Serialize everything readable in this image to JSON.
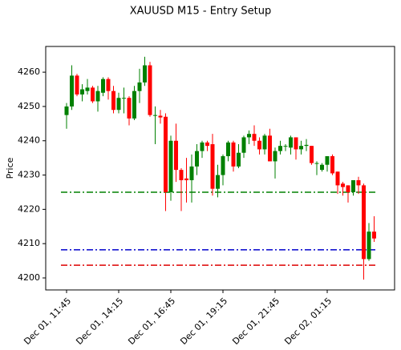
{
  "chart_data": {
    "type": "candlestick",
    "title": "XAUUSD M15 - Entry Setup",
    "ylabel": "Price",
    "categories": [
      "Dec 01, 11:45",
      null,
      null,
      null,
      null,
      null,
      null,
      null,
      null,
      null,
      "Dec 01, 14:15",
      null,
      null,
      null,
      null,
      null,
      null,
      null,
      null,
      null,
      "Dec 01, 16:45",
      null,
      null,
      null,
      null,
      null,
      null,
      null,
      null,
      null,
      "Dec 01, 19:15",
      null,
      null,
      null,
      null,
      null,
      null,
      null,
      null,
      null,
      "Dec 01, 21:45",
      null,
      null,
      null,
      null,
      null,
      null,
      null,
      null,
      null,
      "Dec 02, 01:15",
      null,
      null,
      null,
      null,
      null,
      null,
      null,
      null,
      null
    ],
    "open": [
      4247.5,
      4250,
      4259,
      4253.5,
      4254.5,
      4255.5,
      4251.5,
      4254,
      4258,
      4254.5,
      4249,
      4252.5,
      4252.5,
      4246.5,
      4254.5,
      4257,
      4262,
      4247.5,
      4247.3,
      4247,
      4225,
      4240,
      4231.5,
      4229,
      4228.5,
      4232.5,
      4237,
      4239.5,
      4239,
      4226,
      4230,
      4235.5,
      4239.5,
      4232.5,
      4236.5,
      4241,
      4242,
      4240,
      4237.5,
      4241.5,
      4234,
      4237,
      4238.5,
      4238,
      4241,
      4237.5,
      4238.5,
      4238.5,
      4233.5,
      4231.5,
      4233,
      4235.5,
      4231,
      4227.5,
      4227,
      4225,
      4228.5,
      4227,
      4205.5,
      4213.5
    ],
    "high": [
      4251,
      4262,
      4259.5,
      4256.5,
      4258,
      4256,
      4256,
      4258.5,
      4258.5,
      4256,
      4254,
      4255.5,
      4253,
      4256,
      4261,
      4264.5,
      4263,
      4250,
      4249,
      4248,
      4241.5,
      4245,
      4232,
      4235,
      4236,
      4239,
      4240,
      4240,
      4242,
      4233,
      4236,
      4240,
      4240,
      4239,
      4241.5,
      4243,
      4244.5,
      4241,
      4242,
      4243.5,
      4238,
      4240,
      4239,
      4241.5,
      4241,
      4240,
      4240.5,
      4238.5,
      4234,
      4233.5,
      4235.5,
      4236,
      4231,
      4228,
      4227,
      4228.5,
      4229.5,
      4227.5,
      4216,
      4218
    ],
    "low": [
      4243.5,
      4249,
      4253,
      4251.5,
      4253.5,
      4251,
      4248.5,
      4253,
      4252,
      4248,
      4248,
      4248,
      4244.5,
      4246,
      4251,
      4256,
      4247,
      4239,
      4245,
      4219.5,
      4222.5,
      4228,
      4219.5,
      4222,
      4222,
      4230,
      4235,
      4237,
      4224,
      4223.5,
      4227,
      4234,
      4231,
      4232,
      4235,
      4239,
      4238.5,
      4236,
      4236,
      4234,
      4229,
      4236,
      4237,
      4236,
      4234.5,
      4236,
      4237,
      4233,
      4230,
      4231,
      4231,
      4230,
      4224.5,
      4224,
      4222,
      4224,
      4224.5,
      4199.5,
      4205,
      4210.5
    ],
    "close": [
      4250,
      4259,
      4253.5,
      4255,
      4255.5,
      4251.5,
      4254.5,
      4258,
      4254.5,
      4249,
      4252.5,
      4252.5,
      4246.5,
      4254.5,
      4257,
      4262,
      4247.5,
      4247.5,
      4246.8,
      4225,
      4240,
      4231.5,
      4228.5,
      4228.5,
      4232.5,
      4237,
      4239.5,
      4238.5,
      4226,
      4230,
      4235.5,
      4239.5,
      4232.5,
      4236.5,
      4241,
      4242,
      4240,
      4237.5,
      4241.5,
      4234,
      4237,
      4238.5,
      4238.5,
      4241,
      4237.5,
      4238.5,
      4238.8,
      4233.5,
      4233.5,
      4233,
      4235.5,
      4230.5,
      4227,
      4226.5,
      4225,
      4228.5,
      4227,
      4205.5,
      4213.5,
      4211.5
    ],
    "up_color": "#008000",
    "down_color": "#ff0000",
    "hlines": [
      {
        "value": 4225,
        "color": "#008000"
      },
      {
        "value": 4208.2,
        "color": "#0000cc"
      },
      {
        "value": 4203.7,
        "color": "#dd0000"
      }
    ],
    "ylim": [
      4196.5,
      4267.5
    ],
    "yticks": [
      4200,
      4210,
      4220,
      4230,
      4240,
      4250,
      4260
    ]
  }
}
